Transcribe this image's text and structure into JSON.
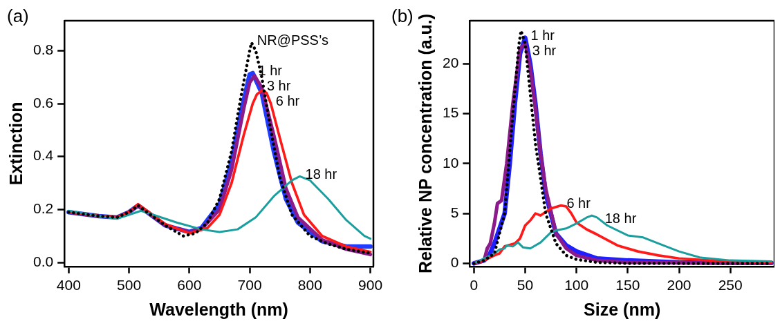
{
  "chart_data": [
    {
      "type": "line",
      "annotations": [
        "(a)"
      ],
      "xlabel": "Wavelength (nm)",
      "ylabel": "Extinction",
      "xlim": [
        393,
        905
      ],
      "ylim": [
        -0.015,
        0.913
      ],
      "xticks": [
        400,
        500,
        600,
        700,
        800,
        900
      ],
      "yticks": [
        {
          "value": 0,
          "label": "0.0"
        },
        0.2,
        0.4,
        0.6,
        0.8
      ],
      "grid": false,
      "legend": false,
      "marker": "none",
      "series": [
        {
          "name": "NR@PSS’s",
          "color": "#000000",
          "line_style": "dotted",
          "x": [
            400,
            450,
            480,
            500,
            515,
            530,
            560,
            590,
            610,
            630,
            650,
            670,
            685,
            700,
            703,
            710,
            720,
            735,
            750,
            770,
            800,
            830,
            860,
            900
          ],
          "values": [
            0.19,
            0.175,
            0.17,
            0.19,
            0.215,
            0.19,
            0.14,
            0.1,
            0.11,
            0.15,
            0.24,
            0.42,
            0.62,
            0.8,
            0.83,
            0.8,
            0.7,
            0.5,
            0.32,
            0.18,
            0.1,
            0.07,
            0.05,
            0.035
          ]
        },
        {
          "name": "1 hr",
          "color": "#1f3cff",
          "line_style": "solid",
          "x": [
            400,
            450,
            480,
            500,
            515,
            530,
            560,
            600,
            620,
            650,
            670,
            685,
            700,
            705,
            720,
            740,
            760,
            780,
            820,
            860,
            900
          ],
          "values": [
            0.19,
            0.175,
            0.17,
            0.19,
            0.215,
            0.19,
            0.14,
            0.115,
            0.13,
            0.22,
            0.38,
            0.56,
            0.71,
            0.715,
            0.64,
            0.42,
            0.24,
            0.15,
            0.08,
            0.06,
            0.06
          ]
        },
        {
          "name": "3 hr",
          "color": "#8b1a8b",
          "line_style": "solid",
          "x": [
            400,
            450,
            480,
            500,
            515,
            530,
            560,
            600,
            620,
            650,
            670,
            690,
            700,
            708,
            720,
            740,
            760,
            780,
            820,
            860,
            900
          ],
          "values": [
            0.19,
            0.175,
            0.17,
            0.19,
            0.215,
            0.19,
            0.14,
            0.115,
            0.125,
            0.2,
            0.35,
            0.58,
            0.68,
            0.705,
            0.66,
            0.48,
            0.28,
            0.17,
            0.085,
            0.05,
            0.03
          ]
        },
        {
          "name": "6 hr",
          "color": "#ff1a1a",
          "line_style": "solid",
          "x": [
            400,
            450,
            480,
            500,
            515,
            530,
            560,
            600,
            630,
            650,
            670,
            690,
            705,
            712,
            720,
            728,
            735,
            750,
            770,
            790,
            820,
            860,
            900
          ],
          "values": [
            0.19,
            0.175,
            0.17,
            0.19,
            0.22,
            0.195,
            0.145,
            0.11,
            0.13,
            0.18,
            0.3,
            0.48,
            0.6,
            0.635,
            0.65,
            0.64,
            0.6,
            0.47,
            0.3,
            0.18,
            0.1,
            0.06,
            0.04
          ]
        },
        {
          "name": "18 hr",
          "color": "#1a9e9e",
          "line_style": "solid",
          "x": [
            400,
            450,
            480,
            500,
            520,
            540,
            580,
            620,
            650,
            680,
            710,
            740,
            770,
            783,
            800,
            830,
            860,
            890,
            900
          ],
          "values": [
            0.195,
            0.175,
            0.165,
            0.18,
            0.195,
            0.18,
            0.15,
            0.125,
            0.115,
            0.125,
            0.17,
            0.25,
            0.31,
            0.325,
            0.31,
            0.24,
            0.16,
            0.1,
            0.09
          ]
        }
      ]
    },
    {
      "type": "line",
      "annotations": [
        "(b)"
      ],
      "xlabel": "Size (nm)",
      "ylabel": "Relative NP concentration (a.u.)",
      "xlim": [
        -4,
        293
      ],
      "ylim": [
        -0.3,
        24.3
      ],
      "xticks": [
        0,
        50,
        100,
        150,
        200,
        250
      ],
      "yticks": [
        0,
        5,
        10,
        15,
        20
      ],
      "grid": false,
      "legend": false,
      "marker": "none",
      "series": [
        {
          "color": "#000000",
          "line_style": "dotted",
          "x": [
            0,
            10,
            20,
            30,
            38,
            44,
            46,
            50,
            55,
            60,
            70,
            80,
            90,
            100,
            120,
            150,
            290
          ],
          "values": [
            0,
            0.3,
            1,
            5,
            15,
            22,
            23.3,
            22,
            17,
            12,
            5,
            2,
            0.8,
            0.4,
            0.1,
            0,
            0
          ]
        },
        {
          "name": "1 hr",
          "color": "#1f1fff",
          "line_style": "solid",
          "x": [
            0,
            10,
            15,
            20,
            25,
            30,
            35,
            40,
            45,
            50,
            55,
            60,
            65,
            70,
            80,
            90,
            100,
            120,
            150,
            200,
            290
          ],
          "values": [
            0,
            0.3,
            0.8,
            2,
            3.5,
            5,
            10,
            16,
            21,
            22.6,
            20,
            16,
            11,
            7,
            3,
            1.8,
            1.2,
            0.5,
            0.3,
            0.1,
            0.05
          ]
        },
        {
          "name": "3 hr",
          "color": "#8b1a8b",
          "line_style": "solid",
          "x": [
            0,
            10,
            13,
            16,
            20,
            23,
            27,
            32,
            38,
            45,
            50,
            55,
            60,
            65,
            70,
            80,
            90,
            100,
            120,
            150,
            290
          ],
          "values": [
            0,
            0.3,
            1.5,
            2,
            4,
            6,
            6.3,
            10,
            16,
            21.5,
            22,
            19.5,
            15.5,
            11,
            7.5,
            3,
            1.5,
            0.8,
            0.3,
            0.1,
            0
          ]
        },
        {
          "name": "6 hr",
          "color": "#ff1a1a",
          "line_style": "solid",
          "x": [
            0,
            10,
            20,
            25,
            30,
            40,
            45,
            50,
            55,
            60,
            65,
            75,
            85,
            90,
            95,
            100,
            110,
            120,
            140,
            160,
            180,
            200,
            230,
            260,
            290
          ],
          "values": [
            0,
            0.3,
            0.8,
            1,
            1.7,
            2,
            2.5,
            3.8,
            4.3,
            5,
            4.8,
            5.5,
            5.8,
            5.7,
            5,
            4.1,
            3.4,
            2.9,
            1.8,
            1.2,
            0.8,
            0.5,
            0.3,
            0.2,
            0.15
          ]
        },
        {
          "name": "18 hr",
          "color": "#1a9e9e",
          "line_style": "solid",
          "x": [
            0,
            10,
            20,
            25,
            30,
            32,
            38,
            43,
            48,
            55,
            65,
            75,
            80,
            90,
            100,
            110,
            115,
            120,
            130,
            150,
            165,
            180,
            200,
            220,
            250,
            290
          ],
          "values": [
            0,
            0.5,
            1,
            1.4,
            1.5,
            1.8,
            1.7,
            2.1,
            1.6,
            1.5,
            2.1,
            3.1,
            3.3,
            3.5,
            4,
            4.6,
            4.8,
            4.6,
            3.8,
            2.8,
            2.6,
            2,
            1.2,
            0.6,
            0.3,
            0.2
          ]
        }
      ]
    }
  ]
}
